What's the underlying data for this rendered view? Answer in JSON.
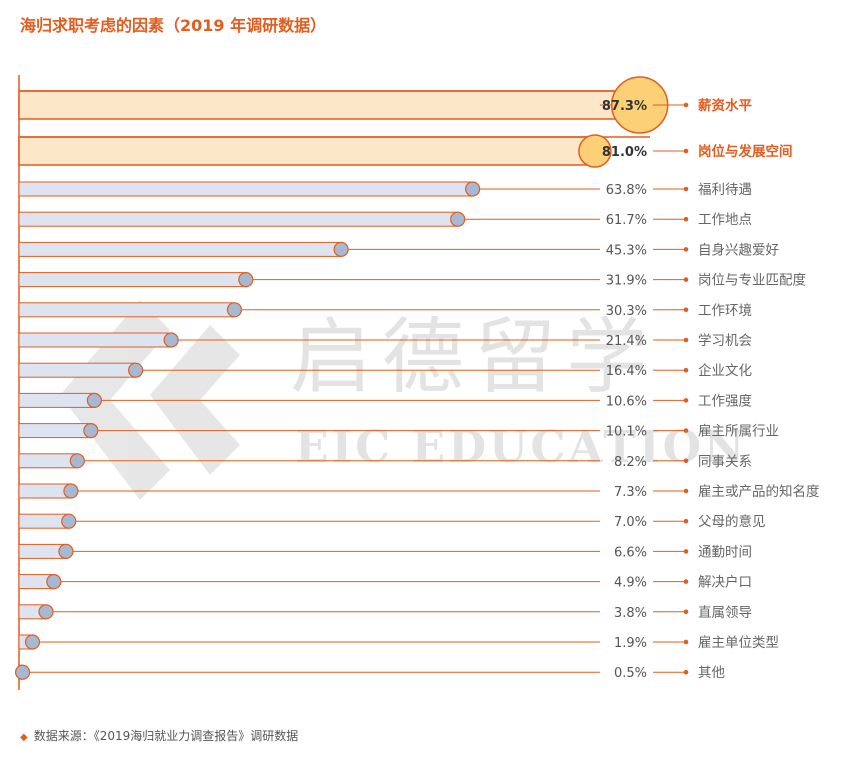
{
  "title": "海归求职考虑的因素（2019 年调研数据）",
  "footnote": "数据来源：《2019海归就业力调查报告》调研数据",
  "watermark": {
    "cn": "启德留学",
    "en": "EIC EDUCATION"
  },
  "colors": {
    "accent": "#e25d1f",
    "highlight_bar": "#fde7c9",
    "highlight_dot": "#fbd077",
    "normal_bar": "#dde4ef",
    "normal_dot": "#a6b8d2"
  },
  "chart_data": {
    "type": "bar",
    "orientation": "horizontal",
    "categories": [
      "薪资水平",
      "岗位与发展空间",
      "福利待遇",
      "工作地点",
      "自身兴趣爱好",
      "岗位与专业匹配度",
      "工作环境",
      "学习机会",
      "企业文化",
      "工作强度",
      "雇主所属行业",
      "同事关系",
      "雇主或产品的知名度",
      "父母的意见",
      "通勤时间",
      "解决户口",
      "直属领导",
      "雇主单位类型",
      "其他"
    ],
    "values": [
      87.3,
      81.0,
      63.8,
      61.7,
      45.3,
      31.9,
      30.3,
      21.4,
      16.4,
      10.6,
      10.1,
      8.2,
      7.3,
      7.0,
      6.6,
      4.9,
      3.8,
      1.9,
      0.5
    ],
    "value_labels": [
      "87.3%",
      "81.0%",
      "63.8%",
      "61.7%",
      "45.3%",
      "31.9%",
      "30.3%",
      "21.4%",
      "16.4%",
      "10.6%",
      "10.1%",
      "8.2%",
      "7.3%",
      "7.0%",
      "6.6%",
      "4.9%",
      "3.8%",
      "1.9%",
      "0.5%"
    ],
    "highlighted": [
      "薪资水平",
      "岗位与发展空间"
    ],
    "unit": "%"
  }
}
